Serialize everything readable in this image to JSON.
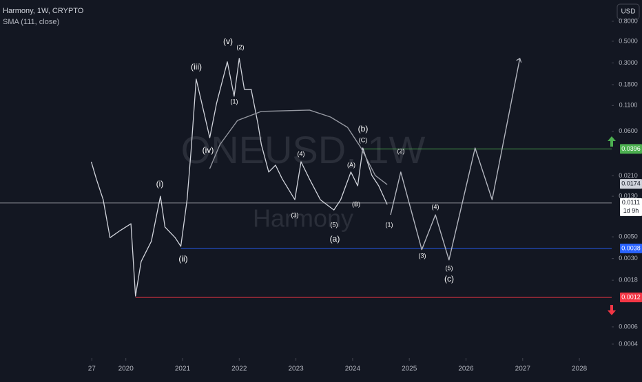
{
  "chart_data": {
    "type": "line",
    "title": "Harmony, 1W, CRYPTO",
    "subtitle": "SMA (111, close)",
    "currency": "USD",
    "watermark": [
      "ONEUSD, 1W",
      "Harmony"
    ],
    "log_scale": true,
    "xlim": [
      2017.78,
      2028.57
    ],
    "ylim": [
      0.000289,
      1.32
    ],
    "xticks": [
      {
        "value": 2019.4,
        "label": "27"
      },
      2020,
      2021,
      2022,
      2023,
      2024,
      2025,
      2026,
      2027,
      2028
    ],
    "yticks": [
      {
        "value": 0.8,
        "label": "0.8000"
      },
      {
        "value": 0.5,
        "label": "0.5000"
      },
      {
        "value": 0.3,
        "label": "0.3000"
      },
      {
        "value": 0.18,
        "label": "0.1800"
      },
      {
        "value": 0.11,
        "label": "0.1100"
      },
      {
        "value": 0.06,
        "label": "0.0600"
      },
      {
        "value": 0.021,
        "label": "0.0210"
      },
      {
        "value": 0.013,
        "label": "0.0130"
      },
      {
        "value": 0.005,
        "label": "0.0050"
      },
      {
        "value": 0.003,
        "label": "0.0030"
      },
      {
        "value": 0.0018,
        "label": "0.0018"
      },
      {
        "value": 0.0006,
        "label": "0.0006"
      },
      {
        "value": 0.0004,
        "label": "0.0004"
      }
    ],
    "series": [
      {
        "color": "#d1d4dc",
        "x": [
          2019.39,
          2019.48,
          2019.6,
          2019.72,
          2019.9,
          2020.09,
          2020.17,
          2020.27,
          2020.45,
          2020.61,
          2020.69,
          2020.87,
          2020.97,
          2021.08,
          2021.15,
          2021.24,
          2021.34,
          2021.48,
          2021.6,
          2021.79,
          2021.91,
          2022.0,
          2022.09,
          2022.21,
          2022.33,
          2022.39,
          2022.52,
          2022.64,
          2022.76,
          2022.98,
          2023.09,
          2023.24,
          2023.43,
          2023.67,
          2023.79,
          2023.97,
          2024.09,
          2024.18,
          2024.34,
          2024.46,
          2024.61
        ],
        "values": [
          0.0293,
          0.0195,
          0.012,
          0.0049,
          0.0058,
          0.0068,
          0.00124,
          0.0028,
          0.0045,
          0.013,
          0.0063,
          0.0049,
          0.004,
          0.012,
          0.0373,
          0.205,
          0.116,
          0.0516,
          0.116,
          0.308,
          0.137,
          0.334,
          0.161,
          0.161,
          0.0714,
          0.0439,
          0.023,
          0.027,
          0.0195,
          0.012,
          0.0293,
          0.0195,
          0.012,
          0.0094,
          0.012,
          0.023,
          0.0166,
          0.0405,
          0.0212,
          0.0166,
          0.0107
        ]
      },
      {
        "color": "#9598a1",
        "x": [
          2021.48,
          2021.66,
          2021.97,
          2022.39,
          2023.24,
          2023.61,
          2023.91,
          2024.15,
          2024.4,
          2024.61
        ],
        "values": [
          0.0249,
          0.0439,
          0.0774,
          0.0957,
          0.0989,
          0.084,
          0.0659,
          0.0405,
          0.0212,
          0.0171
        ]
      },
      {
        "color": "#b2b5be",
        "x": [
          2024.67,
          2024.85,
          2025.22,
          2025.46,
          2025.7,
          2026.16,
          2026.46,
          2026.95
        ],
        "values": [
          0.0084,
          0.023,
          0.0037,
          0.0084,
          0.0029,
          0.0405,
          0.012,
          0.334
        ]
      }
    ],
    "levels": [
      {
        "value": 0.0396,
        "color": "#4caf50",
        "start": 2024.18,
        "line": true
      },
      {
        "value": 0.0174,
        "color": "#d1d4dc",
        "line": false
      },
      {
        "value": 0.0111,
        "color": "#ffffff",
        "line": true,
        "countdown": "1d 9h"
      },
      {
        "value": 0.0038,
        "color": "#2962ff",
        "start": 2020.97,
        "line": true
      },
      {
        "value": 0.0012,
        "color": "#f23645",
        "start": 2020.17,
        "line": true
      }
    ],
    "annotations": [
      "(v)",
      "(2)",
      "(iii)",
      "(1)",
      "(iv)",
      "(i)",
      "(ii)",
      "(b)",
      "(C)",
      "(4)",
      "(A)",
      "(B)",
      "(3)",
      "(5)",
      "(a)",
      "(1)",
      "(2)",
      "(4)",
      "(3)",
      "(5)",
      "(c)"
    ]
  }
}
